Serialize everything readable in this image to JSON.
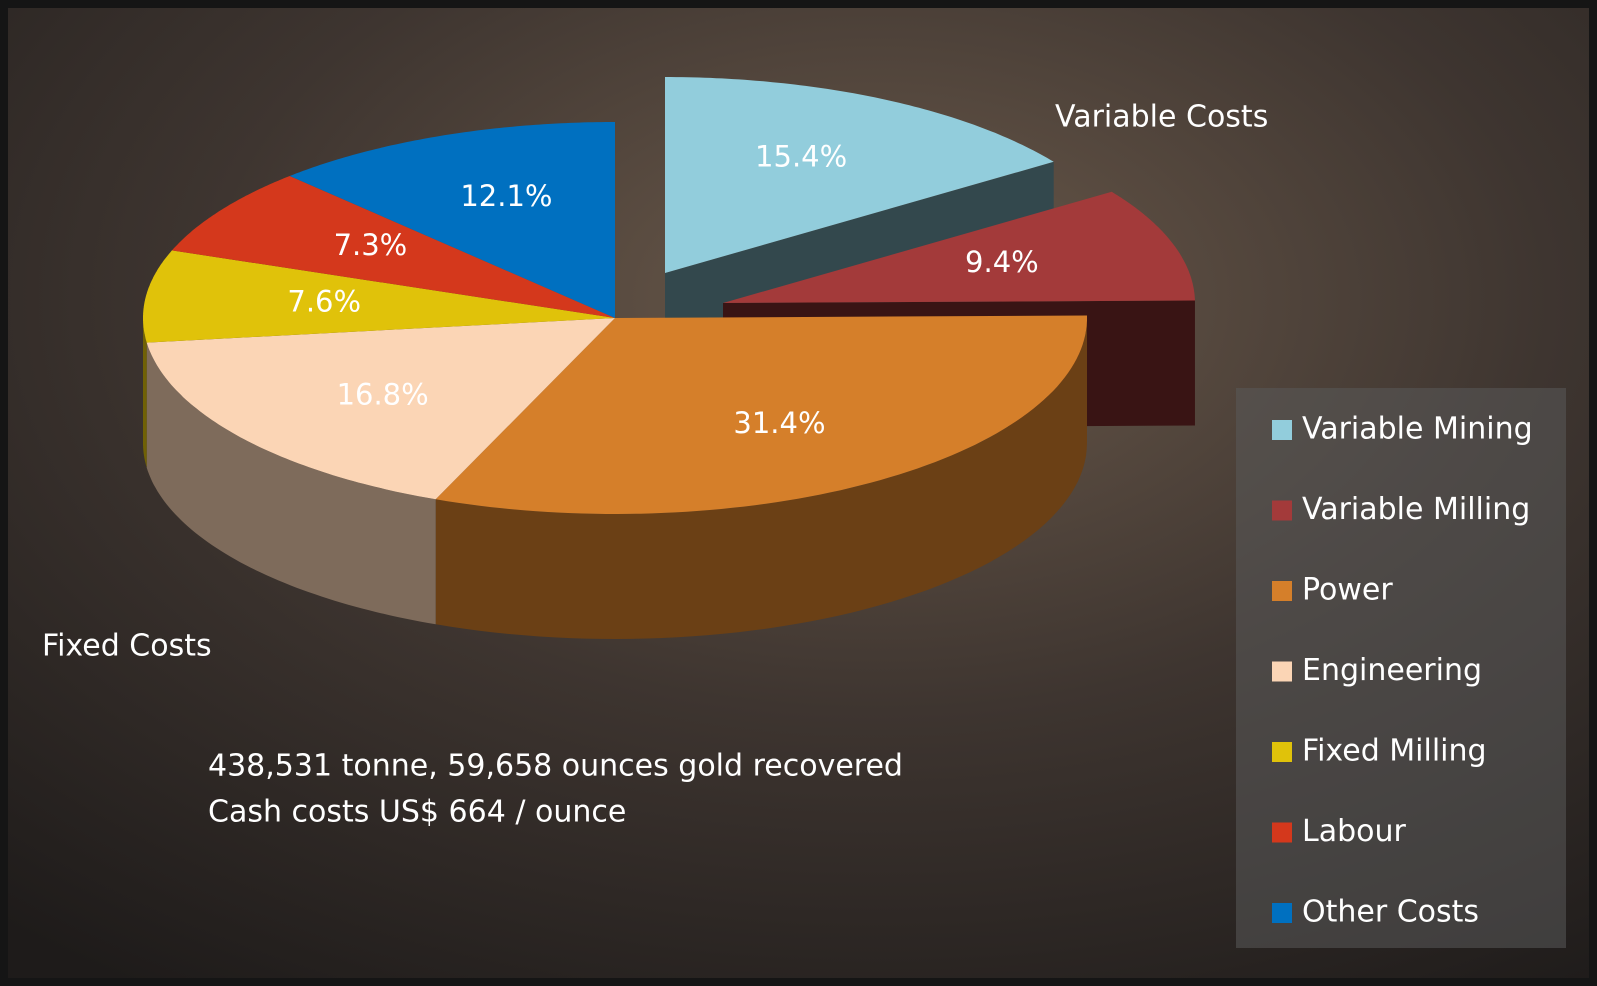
{
  "chart_data": {
    "type": "pie3d",
    "categories": [
      "Variable Mining",
      "Variable Milling",
      "Power",
      "Engineering",
      "Fixed Milling",
      "Labour",
      "Other Costs"
    ],
    "values": [
      15.4,
      9.4,
      31.4,
      16.8,
      7.6,
      7.3,
      12.1
    ],
    "value_labels": [
      "15.4%",
      "9.4%",
      "31.4%",
      "16.8%",
      "7.6%",
      "7.3%",
      "12.1%"
    ],
    "colors": [
      "#92cddc",
      "#a33a3a",
      "#d57f2a",
      "#fbd5b5",
      "#e0c20a",
      "#d4381c",
      "#0070c0"
    ],
    "annotations": [
      "Variable Costs",
      "Fixed Costs",
      "438,531 tonne, 59,658 ounces gold recovered",
      "Cash costs US$ 664 / ounce"
    ],
    "legend": "right"
  }
}
